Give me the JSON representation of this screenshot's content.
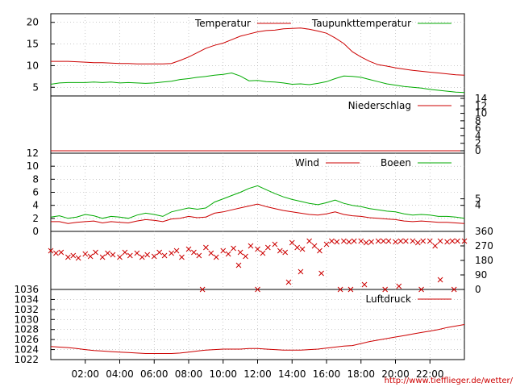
{
  "time_axis": {
    "labels": [
      "02:00",
      "04:00",
      "06:00",
      "08:00",
      "10:00",
      "12:00",
      "14:00",
      "16:00",
      "18:00",
      "20:00",
      "22:00"
    ]
  },
  "credit": "http://www.tiefflieger.de/wetter/",
  "colors": {
    "primary": "#cc0000",
    "secondary": "#00aa00",
    "grid": "#aaaaaa",
    "frame": "#000000"
  },
  "chart_data": [
    {
      "type": "line",
      "series": [
        {
          "name": "Temperatur",
          "x": [
            0,
            0.5,
            1,
            1.5,
            2,
            2.5,
            3,
            3.5,
            4,
            4.5,
            5,
            5.5,
            6,
            6.5,
            7,
            7.5,
            8,
            8.5,
            9,
            9.5,
            10,
            10.5,
            11,
            11.5,
            12,
            12.5,
            13,
            13.5,
            14,
            14.5,
            15,
            15.5,
            16,
            16.5,
            17,
            17.5,
            18,
            18.5,
            19,
            19.5,
            20,
            20.5,
            21,
            21.5,
            22,
            22.5,
            23,
            23.5,
            24
          ],
          "y": [
            11.0,
            11.0,
            11.0,
            10.9,
            10.8,
            10.7,
            10.7,
            10.6,
            10.5,
            10.5,
            10.4,
            10.4,
            10.4,
            10.4,
            10.5,
            11.2,
            12.0,
            13.0,
            14.0,
            14.7,
            15.2,
            16.0,
            16.8,
            17.3,
            17.8,
            18.1,
            18.2,
            18.5,
            18.6,
            18.7,
            18.4,
            18.0,
            17.5,
            16.4,
            15.1,
            13.2,
            12.0,
            11.0,
            10.2,
            9.9,
            9.5,
            9.2,
            8.9,
            8.7,
            8.5,
            8.3,
            8.1,
            7.9,
            7.8
          ]
        },
        {
          "name": "Taupunkttemperatur",
          "x": [
            0,
            0.5,
            1,
            1.5,
            2,
            2.5,
            3,
            3.5,
            4,
            4.5,
            5,
            5.5,
            6,
            6.5,
            7,
            7.5,
            8,
            8.5,
            9,
            9.5,
            10,
            10.5,
            11,
            11.5,
            12,
            12.5,
            13,
            13.5,
            14,
            14.5,
            15,
            15.5,
            16,
            16.5,
            17,
            17.5,
            18,
            18.5,
            19,
            19.5,
            20,
            20.5,
            21,
            21.5,
            22,
            22.5,
            23,
            23.5,
            24
          ],
          "y": [
            5.7,
            6.0,
            6.1,
            6.1,
            6.1,
            6.2,
            6.1,
            6.2,
            6.0,
            6.1,
            6.0,
            5.9,
            6.0,
            6.2,
            6.4,
            6.8,
            7.0,
            7.3,
            7.5,
            7.8,
            8.0,
            8.3,
            7.6,
            6.5,
            6.6,
            6.3,
            6.2,
            6.0,
            5.7,
            5.8,
            5.6,
            5.9,
            6.3,
            7.0,
            7.6,
            7.5,
            7.3,
            6.8,
            6.3,
            5.8,
            5.5,
            5.2,
            5.0,
            4.8,
            4.5,
            4.3,
            4.1,
            3.9,
            3.8
          ]
        }
      ],
      "ylim": [
        3,
        22
      ],
      "yticks": [
        5,
        10,
        15,
        20
      ],
      "legend": "top-right",
      "grid": true
    },
    {
      "type": "line",
      "series": [
        {
          "name": "Niederschlag",
          "x": [
            0,
            24
          ],
          "y": [
            0,
            0
          ]
        }
      ],
      "ylim": [
        0,
        14
      ],
      "yticks_right": [
        0,
        2,
        4,
        6,
        8,
        10,
        12,
        14
      ],
      "legend": "top-right",
      "grid": false
    },
    {
      "type": "line",
      "series": [
        {
          "name": "Wind",
          "x": [
            0,
            0.5,
            1,
            1.5,
            2,
            2.5,
            3,
            3.5,
            4,
            4.5,
            5,
            5.5,
            6,
            6.5,
            7,
            7.5,
            8,
            8.5,
            9,
            9.5,
            10,
            10.5,
            11,
            11.5,
            12,
            12.5,
            13,
            13.5,
            14,
            14.5,
            15,
            15.5,
            16,
            16.5,
            17,
            17.5,
            18,
            18.5,
            19,
            19.5,
            20,
            20.5,
            21,
            21.5,
            22,
            22.5,
            23,
            23.5,
            24
          ],
          "y": [
            1.5,
            1.5,
            1.2,
            1.4,
            1.5,
            1.6,
            1.3,
            1.5,
            1.4,
            1.3,
            1.6,
            1.8,
            1.7,
            1.5,
            1.9,
            2.0,
            2.3,
            2.1,
            2.2,
            2.8,
            3.0,
            3.3,
            3.6,
            3.9,
            4.2,
            3.8,
            3.5,
            3.2,
            3.0,
            2.8,
            2.6,
            2.5,
            2.7,
            3.0,
            2.6,
            2.4,
            2.3,
            2.1,
            2.0,
            1.9,
            1.8,
            1.6,
            1.5,
            1.6,
            1.5,
            1.4,
            1.4,
            1.3,
            1.2
          ]
        },
        {
          "name": "Boeen",
          "x": [
            0,
            0.5,
            1,
            1.5,
            2,
            2.5,
            3,
            3.5,
            4,
            4.5,
            5,
            5.5,
            6,
            6.5,
            7,
            7.5,
            8,
            8.5,
            9,
            9.5,
            10,
            10.5,
            11,
            11.5,
            12,
            12.5,
            13,
            13.5,
            14,
            14.5,
            15,
            15.5,
            16,
            16.5,
            17,
            17.5,
            18,
            18.5,
            19,
            19.5,
            20,
            20.5,
            21,
            21.5,
            22,
            22.5,
            23,
            23.5,
            24
          ],
          "y": [
            2.2,
            2.4,
            2.0,
            2.2,
            2.6,
            2.4,
            2.0,
            2.3,
            2.2,
            2.0,
            2.5,
            2.8,
            2.6,
            2.3,
            3.0,
            3.3,
            3.6,
            3.4,
            3.6,
            4.5,
            5.0,
            5.5,
            6.0,
            6.6,
            7.0,
            6.4,
            5.8,
            5.3,
            4.9,
            4.6,
            4.3,
            4.1,
            4.4,
            4.8,
            4.3,
            4.0,
            3.8,
            3.5,
            3.3,
            3.1,
            3.0,
            2.7,
            2.5,
            2.6,
            2.5,
            2.3,
            2.3,
            2.2,
            2.0
          ]
        }
      ],
      "ylim": [
        0,
        12
      ],
      "yticks": [
        0,
        2,
        4,
        6,
        8,
        10,
        12
      ],
      "yticks_right": [
        4,
        5
      ],
      "legend": "top-right",
      "grid": true
    },
    {
      "type": "scatter",
      "series": [
        {
          "x": [
            0,
            0.3,
            0.6,
            1,
            1.3,
            1.6,
            2,
            2.3,
            2.6,
            3,
            3.3,
            3.6,
            4,
            4.3,
            4.6,
            5,
            5.3,
            5.6,
            6,
            6.3,
            6.6,
            7,
            7.3,
            7.6,
            8,
            8.3,
            8.6,
            9,
            9.3,
            9.6,
            10,
            10.3,
            10.6,
            11,
            11.3,
            11.6,
            12,
            12.3,
            12.6,
            13,
            13.3,
            13.6,
            14,
            14.3,
            14.6,
            15,
            15.3,
            15.6,
            16,
            16.3,
            16.6,
            17,
            17.3,
            17.6,
            18,
            18.3,
            18.6,
            19,
            19.3,
            19.6,
            20,
            20.3,
            20.6,
            21,
            21.3,
            21.6,
            22,
            22.3,
            22.6,
            23,
            23.3,
            23.6,
            24,
            8.8,
            12.0,
            13.8,
            15.7,
            16.8,
            17.4,
            18.2,
            19.4,
            20.2,
            21.5,
            22.6,
            23.4,
            10.9,
            14.5
          ],
          "y": [
            240,
            225,
            230,
            200,
            210,
            195,
            220,
            205,
            230,
            200,
            225,
            215,
            200,
            230,
            210,
            225,
            200,
            215,
            205,
            230,
            210,
            225,
            240,
            200,
            250,
            230,
            210,
            260,
            225,
            200,
            240,
            220,
            255,
            230,
            205,
            270,
            250,
            225,
            260,
            280,
            240,
            230,
            290,
            260,
            250,
            300,
            270,
            240,
            280,
            300,
            295,
            300,
            295,
            300,
            300,
            290,
            295,
            300,
            300,
            300,
            295,
            300,
            300,
            300,
            290,
            300,
            300,
            270,
            300,
            295,
            300,
            300,
            300,
            0,
            0,
            45,
            100,
            0,
            0,
            30,
            0,
            20,
            0,
            60,
            0,
            150,
            110
          ]
        }
      ],
      "ylim": [
        0,
        360
      ],
      "yticks_right": [
        0,
        90,
        180,
        270,
        360
      ],
      "grid": true
    },
    {
      "type": "line",
      "series": [
        {
          "name": "Luftdruck",
          "x": [
            0,
            0.5,
            1,
            1.5,
            2,
            2.5,
            3,
            3.5,
            4,
            4.5,
            5,
            5.5,
            6,
            6.5,
            7,
            7.5,
            8,
            8.5,
            9,
            9.5,
            10,
            10.5,
            11,
            11.5,
            12,
            12.5,
            13,
            13.5,
            14,
            14.5,
            15,
            15.5,
            16,
            16.5,
            17,
            17.5,
            18,
            18.5,
            19,
            19.5,
            20,
            20.5,
            21,
            21.5,
            22,
            22.5,
            23,
            23.5,
            24
          ],
          "y": [
            1024.6,
            1024.5,
            1024.4,
            1024.2,
            1024.0,
            1023.8,
            1023.7,
            1023.6,
            1023.5,
            1023.4,
            1023.3,
            1023.2,
            1023.2,
            1023.2,
            1023.2,
            1023.3,
            1023.5,
            1023.7,
            1023.9,
            1024.0,
            1024.1,
            1024.1,
            1024.1,
            1024.2,
            1024.2,
            1024.1,
            1024.0,
            1023.9,
            1023.9,
            1023.9,
            1024.0,
            1024.1,
            1024.3,
            1024.5,
            1024.7,
            1024.8,
            1025.2,
            1025.6,
            1025.9,
            1026.2,
            1026.5,
            1026.8,
            1027.1,
            1027.4,
            1027.7,
            1028.0,
            1028.4,
            1028.7,
            1029.0
          ]
        }
      ],
      "ylim": [
        1022,
        1036
      ],
      "yticks": [
        1022,
        1024,
        1026,
        1028,
        1030,
        1032,
        1034,
        1036
      ],
      "legend": "top-right",
      "grid": true
    }
  ]
}
